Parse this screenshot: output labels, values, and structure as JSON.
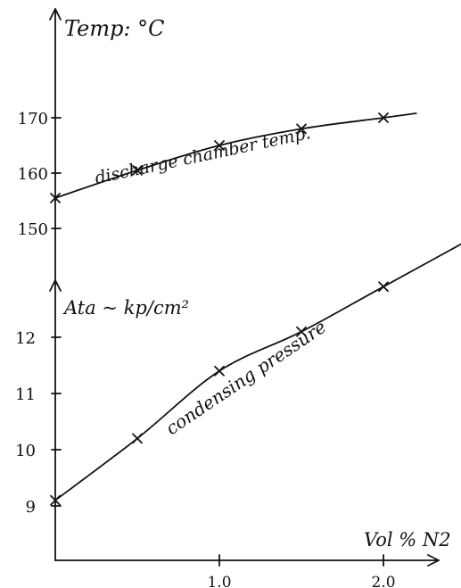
{
  "chart_data": [
    {
      "type": "line",
      "title": "",
      "ylabel": "Temp: °C",
      "xlabel": "Vol % N2",
      "x_ticks": [
        "1.0",
        "2.0"
      ],
      "y_ticks": [
        "150",
        "160",
        "170"
      ],
      "ylim": [
        146,
        175
      ],
      "xlim": [
        0,
        2.3
      ],
      "series": [
        {
          "name": "discharge chamber temp.",
          "x": [
            0,
            0.5,
            1.0,
            1.5,
            2.0
          ],
          "y": [
            155.5,
            160.5,
            165,
            168,
            170
          ]
        }
      ],
      "annotations": [
        "discharge chamber temp."
      ]
    },
    {
      "type": "line",
      "title": "",
      "ylabel": "Ata ~ kp/cm²",
      "xlabel": "Vol % N2",
      "x_ticks": [
        "1.0",
        "2.0"
      ],
      "y_ticks": [
        "9",
        "10",
        "11",
        "12"
      ],
      "ylim": [
        8,
        13
      ],
      "xlim": [
        0,
        2.3
      ],
      "series": [
        {
          "name": "condensing pressure",
          "x": [
            0,
            0.5,
            1.0,
            1.5,
            2.0
          ],
          "y": [
            9.1,
            10.2,
            11.4,
            12.1,
            12.9
          ]
        }
      ],
      "annotations": [
        "condensing pressure"
      ]
    }
  ]
}
